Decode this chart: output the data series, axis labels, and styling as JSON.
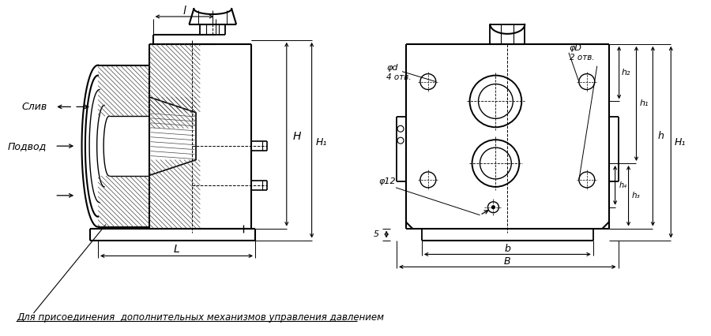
{
  "bg_color": "#ffffff",
  "title_text": "Для присоединения  дополнительных механизмов управления давлением",
  "label_sliv": "Слив",
  "label_podvod": "Подвод",
  "label_l": "l",
  "label_L": "L",
  "label_H": "H",
  "label_H1": "H₁",
  "label_phid": "φd",
  "label_4otv": "4 отв.",
  "label_phiD": "φD",
  "label_2otv": "2 отв.",
  "label_phi12": "φ12",
  "label_h1": "h₁",
  "label_h2": "h₂",
  "label_h3": "h₃",
  "label_h4": "h₄",
  "label_h": "h",
  "label_b": "b",
  "label_B": "B",
  "label_5": "5"
}
